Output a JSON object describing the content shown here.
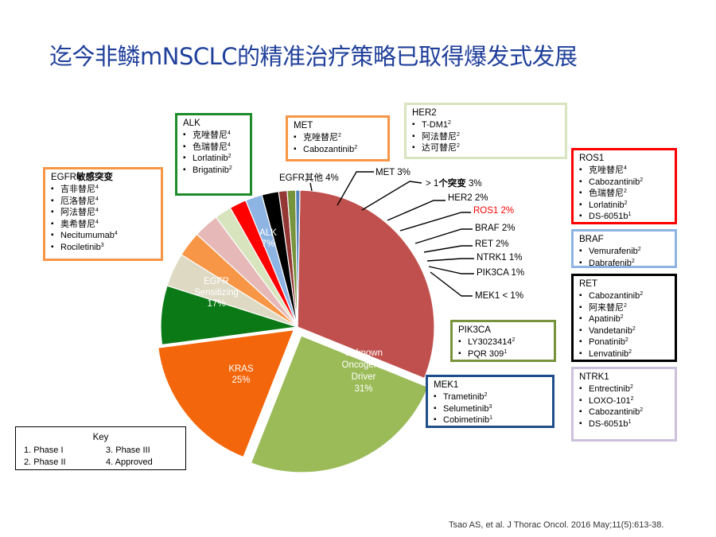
{
  "title": "迄今非鳞mNSCLC的精准治疗策略已取得爆发式发展",
  "chart_data": {
    "type": "pie",
    "slices": [
      {
        "name": "Unknown Oncogenic Driver",
        "value": 31,
        "label": "31%",
        "color": "#c0504d"
      },
      {
        "name": "KRAS",
        "value": 25,
        "label": "25%",
        "color": "#9bbb59"
      },
      {
        "name": "EGFR Sensitizing",
        "value": 17,
        "label": "17%",
        "color": "#f4660b"
      },
      {
        "name": "ALK",
        "value": 7,
        "label": "7%",
        "color": "#0b7a16"
      },
      {
        "name": "EGFR其他",
        "value": 4,
        "label": "4%",
        "color": "#ddd9c3"
      },
      {
        "name": "MET",
        "value": 3,
        "label": "3%",
        "color": "#f79646"
      },
      {
        "name": "> 1个突变",
        "value": 3,
        "label": "3%",
        "color": "#e6b9b8"
      },
      {
        "name": "HER2",
        "value": 2,
        "label": "2%",
        "color": "#d7e4bd"
      },
      {
        "name": "ROS1",
        "value": 2,
        "label": "2%",
        "color": "#ff0000"
      },
      {
        "name": "BRAF",
        "value": 2,
        "label": "2%",
        "color": "#8eb4e3"
      },
      {
        "name": "RET",
        "value": 2,
        "label": "2%",
        "color": "#000000"
      },
      {
        "name": "NTRK1",
        "value": 1,
        "label": "1%",
        "color": "#953735"
      },
      {
        "name": "PIK3CA",
        "value": 1,
        "label": "1%",
        "color": "#77933c"
      },
      {
        "name": "MEK1",
        "value": 0.5,
        "label": "< 1%",
        "color": "#4f81bd"
      }
    ]
  },
  "inside_labels": {
    "alk": [
      "ALK",
      "7%"
    ],
    "egfr": [
      "EGFR",
      "Sensitizing",
      "17%"
    ],
    "kras": [
      "KRAS",
      "25%"
    ],
    "unknown": [
      "Unknown",
      "Oncogenic",
      "Driver",
      "31%"
    ]
  },
  "callouts": {
    "egfr_other": {
      "name": "EGFR其他",
      "pct": "4%"
    },
    "met": "MET 3%",
    "multi": {
      "a": "> 1",
      "b": "个突变",
      "c": "3%"
    },
    "her2": "HER2 2%",
    "ros1": "ROS1 2%",
    "braf": "BRAF 2%",
    "ret": "RET 2%",
    "ntrk1": "NTRK1 1%",
    "pik3ca": "PIK3CA 1%",
    "mek1": "MEK1 < 1%"
  },
  "boxes": {
    "egfr": {
      "head": "EGFR",
      "head_bold": "敏感突变",
      "color": "#f79646",
      "items": [
        [
          "吉非替尼",
          "4"
        ],
        [
          "厄洛替尼",
          "4"
        ],
        [
          "阿法替尼",
          "4"
        ],
        [
          "奥希替尼",
          "4"
        ],
        [
          "Necitumumab",
          "4"
        ],
        [
          "Rociletinib",
          "3"
        ]
      ]
    },
    "alk": {
      "head": "ALK",
      "color": "#1e8c2a",
      "items": [
        [
          "克唑替尼",
          "4"
        ],
        [
          "色瑞替尼",
          "4"
        ],
        [
          "Lorlatinib",
          "2"
        ],
        [
          "Brigatinib",
          "2"
        ]
      ]
    },
    "met": {
      "head": "MET",
      "color": "#f79646",
      "items": [
        [
          "克唑替尼",
          "2"
        ],
        [
          "Cabozantinib",
          "2"
        ]
      ]
    },
    "her2": {
      "head": "HER2",
      "color": "#d7e4bd",
      "items": [
        [
          "T-DM1",
          "2"
        ],
        [
          "阿法替尼",
          "2"
        ],
        [
          "达可替尼",
          "2"
        ]
      ]
    },
    "ros1": {
      "head": "ROS1",
      "color": "#ff0000",
      "items": [
        [
          "克唑替尼",
          "4"
        ],
        [
          "Cabozantinib",
          "2"
        ],
        [
          "色瑞替尼",
          "2"
        ],
        [
          "Lorlatinib",
          "2"
        ],
        [
          "DS-6051b",
          "1"
        ]
      ]
    },
    "braf": {
      "head": "BRAF",
      "color": "#8eb4e3",
      "items": [
        [
          "Vemurafenib",
          "2"
        ],
        [
          "Dabrafenib",
          "2"
        ]
      ]
    },
    "ret": {
      "head": "RET",
      "color": "#000000",
      "items": [
        [
          "Cabozantinib",
          "2"
        ],
        [
          "阿来替尼",
          "2"
        ],
        [
          "Apatinib",
          "2"
        ],
        [
          "Vandetanib",
          "2"
        ],
        [
          "Ponatinib",
          "2"
        ],
        [
          "Lenvatinib",
          "2"
        ]
      ]
    },
    "ntrk1": {
      "head": "NTRK1",
      "color": "#ccc1da",
      "items": [
        [
          "Entrectinib",
          "2"
        ],
        [
          "LOXO-101",
          "2"
        ],
        [
          "Cabozantinib",
          "2"
        ],
        [
          "DS-6051b",
          "1"
        ]
      ]
    },
    "pik3ca": {
      "head": "PIK3CA",
      "color": "#77933c",
      "items": [
        [
          "LY3023414",
          "2"
        ],
        [
          "PQR 309",
          "1"
        ]
      ]
    },
    "mek1": {
      "head": "MEK1",
      "color": "#1f4e8c",
      "items": [
        [
          "Trametinib",
          "2"
        ],
        [
          "Selumetinib",
          "3"
        ],
        [
          "Cobimetinib",
          "1"
        ]
      ]
    }
  },
  "key": {
    "title": "Key",
    "p1": "1. Phase I",
    "p2": "2. Phase II",
    "p3": "3. Phase III",
    "p4": "4. Approved"
  },
  "citation": "Tsao AS, et al. J Thorac Oncol. 2016 May;11(5):613-38."
}
